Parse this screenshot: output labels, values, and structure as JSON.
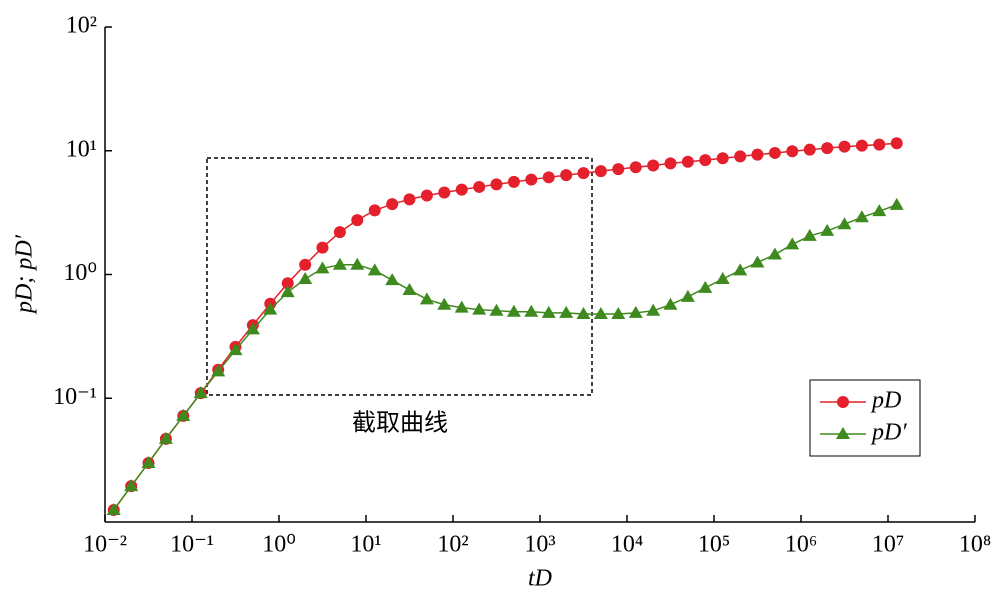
{
  "chart_data": {
    "type": "line",
    "xlabel": "tD",
    "ylabel": "pD; pD′",
    "annotation": "截取曲线",
    "log_x": true,
    "log_y": true,
    "legend": "right",
    "x": [
      0.0126,
      0.02,
      0.0316,
      0.0501,
      0.0794,
      0.126,
      0.2,
      0.316,
      0.501,
      0.794,
      1.26,
      2,
      3.16,
      5.01,
      7.94,
      12.6,
      20,
      31.6,
      50.1,
      79.4,
      126,
      200,
      316,
      501,
      794,
      1260,
      2000,
      3160,
      5010,
      7940,
      12600,
      20000,
      31600,
      50100,
      79400,
      126000,
      200000,
      316000,
      501000,
      794000,
      1260000,
      2000000,
      3160000,
      5010000,
      7940000,
      12600000
    ],
    "series": [
      {
        "name": "pD",
        "color": "#e3202b",
        "marker": "circle",
        "values": [
          0.0125,
          0.0195,
          0.03,
          0.047,
          0.072,
          0.11,
          0.17,
          0.26,
          0.39,
          0.58,
          0.85,
          1.2,
          1.65,
          2.2,
          2.75,
          3.3,
          3.7,
          4.05,
          4.35,
          4.6,
          4.85,
          5.1,
          5.35,
          5.6,
          5.85,
          6.1,
          6.35,
          6.6,
          6.85,
          7.1,
          7.35,
          7.6,
          7.9,
          8.15,
          8.4,
          8.7,
          9.0,
          9.3,
          9.6,
          9.9,
          10.2,
          10.5,
          10.8,
          11.0,
          11.2,
          11.5
        ]
      },
      {
        "name": "pD′",
        "color": "#3f8a1e",
        "marker": "triangle",
        "values": [
          0.0125,
          0.0195,
          0.03,
          0.047,
          0.072,
          0.11,
          0.165,
          0.245,
          0.36,
          0.52,
          0.72,
          0.92,
          1.12,
          1.2,
          1.2,
          1.08,
          0.9,
          0.75,
          0.63,
          0.57,
          0.54,
          0.52,
          0.51,
          0.5,
          0.5,
          0.49,
          0.49,
          0.48,
          0.48,
          0.48,
          0.49,
          0.51,
          0.57,
          0.66,
          0.78,
          0.92,
          1.08,
          1.25,
          1.45,
          1.75,
          2.05,
          2.25,
          2.55,
          2.9,
          3.25,
          3.65
        ]
      }
    ],
    "xlim": [
      0.01,
      100000000
    ],
    "ylim": [
      0.01,
      100
    ],
    "xticks": [
      {
        "value": 0.01,
        "label": "10⁻²"
      },
      {
        "value": 0.1,
        "label": "10⁻¹"
      },
      {
        "value": 1,
        "label": "10⁰"
      },
      {
        "value": 10,
        "label": "10¹"
      },
      {
        "value": 100,
        "label": "10²"
      },
      {
        "value": 1000,
        "label": "10³"
      },
      {
        "value": 10000,
        "label": "10⁴"
      },
      {
        "value": 100000,
        "label": "10⁵"
      },
      {
        "value": 1000000,
        "label": "10⁶"
      },
      {
        "value": 10000000,
        "label": "10⁷"
      },
      {
        "value": 100000000,
        "label": "10⁸"
      }
    ],
    "yticks": [
      {
        "value": 0.1,
        "label": "10⁻¹"
      },
      {
        "value": 1,
        "label": "10⁰"
      },
      {
        "value": 10,
        "label": "10¹"
      },
      {
        "value": 100,
        "label": "10²"
      }
    ]
  }
}
